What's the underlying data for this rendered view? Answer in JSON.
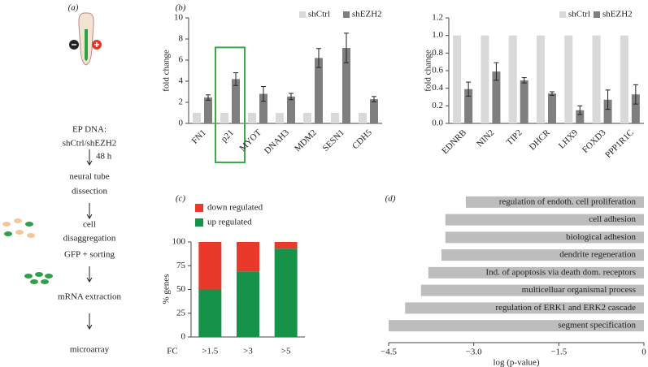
{
  "workflow": {
    "label": "(a)",
    "steps": [
      "EP DNA:",
      "shCtrl/shEZH2",
      "48 h",
      "neural tube",
      "dissection",
      "cell",
      "disaggregation",
      "GFP + sorting",
      "mRNA extraction",
      "microarray"
    ]
  },
  "chart_data": [
    {
      "type": "bar",
      "label": "(b)",
      "ylabel": "fold change",
      "categories": [
        "FN1",
        "p21",
        "MYOT",
        "DNAH3",
        "MDM2",
        "SESN1",
        "CDH5"
      ],
      "series": [
        {
          "name": "shCtrl",
          "color": "#d9d9d9",
          "values": [
            1,
            1,
            1,
            1,
            1,
            1,
            1
          ]
        },
        {
          "name": "shEZH2",
          "color": "#7f7f7f",
          "values": [
            2.45,
            4.2,
            2.8,
            2.55,
            6.2,
            7.15,
            2.3
          ],
          "errors": [
            0.25,
            0.6,
            0.7,
            0.3,
            0.9,
            1.4,
            0.25
          ]
        }
      ],
      "ylim": [
        0,
        10
      ],
      "yticks": [
        0,
        2,
        4,
        6,
        8,
        10
      ],
      "highlight": "p21",
      "highlight_color": "#3aaa4a"
    },
    {
      "type": "bar",
      "ylabel": "fold change",
      "categories": [
        "EDNRB",
        "NIN2",
        "TIP2",
        "DHCR",
        "LHX9",
        "FOXD3",
        "PPP1R1C"
      ],
      "series": [
        {
          "name": "shCtrl",
          "color": "#d9d9d9",
          "values": [
            1,
            1,
            1,
            1,
            1,
            1,
            1
          ]
        },
        {
          "name": "shEZH2",
          "color": "#7f7f7f",
          "values": [
            0.39,
            0.59,
            0.49,
            0.34,
            0.15,
            0.27,
            0.33
          ],
          "errors": [
            0.08,
            0.1,
            0.03,
            0.02,
            0.05,
            0.11,
            0.11
          ]
        }
      ],
      "ylim": [
        0,
        1.2
      ],
      "yticks": [
        {
          "value": 0,
          "label": "0.0"
        },
        0.2,
        0.4,
        0.6,
        0.8,
        {
          "value": 1,
          "label": "1.0"
        },
        1.2
      ]
    },
    {
      "type": "stacked_bar",
      "label": "(c)",
      "ylabel": "% genes",
      "xlabel": "FC",
      "categories": [
        ">1.5",
        ">3",
        ">5"
      ],
      "series": [
        {
          "name": "up regulated",
          "color": "#17924a",
          "values": [
            50,
            69,
            93
          ]
        },
        {
          "name": "down regulated",
          "color": "#e8392a",
          "values": [
            50,
            31,
            7
          ]
        }
      ],
      "ylim": [
        0,
        100
      ],
      "yticks": [
        0,
        25,
        50,
        75,
        100
      ]
    },
    {
      "type": "hbar",
      "label": "(d)",
      "xlabel": "log (p-value)",
      "color": "#bdbdbd",
      "categories": [
        "regulation of endoth. cell proliferation",
        "cell adhesion",
        "biological adhesion",
        "dendrite regeneration",
        "Ind. of apoptosis via death dom. receptors",
        "multicelluar organismal process",
        "regulation of ERK1 and ERK2 cascade",
        "segment specification"
      ],
      "values": [
        -3.14,
        -3.5,
        -3.5,
        -3.57,
        -3.8,
        -3.93,
        -4.21,
        -4.5
      ],
      "xlim": [
        -4.5,
        0
      ],
      "xticks": [
        {
          "value": -4.5,
          "label": "−4.5"
        },
        {
          "value": -3,
          "label": "−3.0"
        },
        {
          "value": -1.5,
          "label": "−1.5"
        },
        0
      ]
    }
  ]
}
